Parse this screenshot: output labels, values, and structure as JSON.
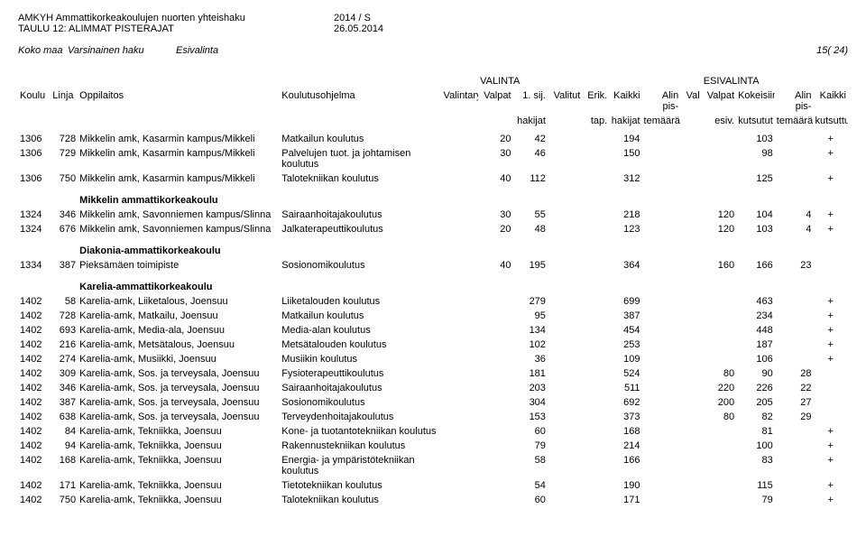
{
  "header": {
    "title1": "AMKYH Ammattikorkeakoulujen nuorten yhteishaku",
    "title1r": "2014 / S",
    "title2": "TAULU 12: ALIMMAT PISTERAJAT",
    "title2r": "26.05.2014"
  },
  "summary": {
    "a": "Koko maa",
    "b": "Varsinainen haku",
    "c": "Esivalinta",
    "page": "15( 24)"
  },
  "colheads": {
    "sec1": "VALINTA",
    "sec2": "ESIVALINTA",
    "koulu": "Koulu",
    "linja": "Linja",
    "oppi": "Oppilaitos",
    "kohj": "Koulutusohjelma",
    "vryhma": "Valintaryhmä",
    "valpat": "Valpat",
    "sij1": "1. sij.",
    "sij2": "hakijat",
    "valitut": "Valitut",
    "erik1": "Erik.",
    "erik2": "tap.",
    "kaikki1": "Kaikki",
    "kaikki2": "hakijat",
    "alin1a": "Alin pis-",
    "alin1b": "temäärä",
    "val": "Val",
    "valpat2a": "Valpat",
    "valpat2b": "esiv.",
    "kok1": "Kokeisiin",
    "kok2": "kutsutut",
    "alin2a": "Alin pis-",
    "alin2b": "temäärä",
    "kaik2a": "Kaikki",
    "kaik2b": "kutsuttu"
  },
  "rows": [
    {
      "koulu": "1306",
      "linja": "728",
      "oppi": "Mikkelin amk, Kasarmin kampus/Mikkeli",
      "kohj": "Matkailun koulutus",
      "valpat": "20",
      "sij": "42",
      "kaikki": "194",
      "kok": "103",
      "kaik2": "+"
    },
    {
      "koulu": "1306",
      "linja": "729",
      "oppi": "Mikkelin amk, Kasarmin kampus/Mikkeli",
      "kohj": "Palvelujen tuot. ja johtamisen koulutus",
      "valpat": "30",
      "sij": "46",
      "kaikki": "150",
      "kok": "98",
      "kaik2": "+"
    },
    {
      "koulu": "1306",
      "linja": "750",
      "oppi": "Mikkelin amk, Kasarmin kampus/Mikkeli",
      "kohj": "Talotekniikan koulutus",
      "valpat": "40",
      "sij": "112",
      "kaikki": "312",
      "kok": "125",
      "kaik2": "+"
    }
  ],
  "section2": {
    "title": "Mikkelin ammattikorkeakoulu",
    "rows": [
      {
        "koulu": "1324",
        "linja": "346",
        "oppi": "Mikkelin amk, Savonniemen kampus/Slinna",
        "kohj": "Sairaanhoitajakoulutus",
        "valpat": "30",
        "sij": "55",
        "kaikki": "218",
        "valpat2": "120",
        "kok": "104",
        "alin2": "4",
        "kaik2": "+"
      },
      {
        "koulu": "1324",
        "linja": "676",
        "oppi": "Mikkelin amk, Savonniemen kampus/Slinna",
        "kohj": "Jalkaterapeuttikoulutus",
        "valpat": "20",
        "sij": "48",
        "kaikki": "123",
        "valpat2": "120",
        "kok": "103",
        "alin2": "4",
        "kaik2": "+"
      }
    ]
  },
  "section3": {
    "title": "Diakonia-ammattikorkeakoulu",
    "rows": [
      {
        "koulu": "1334",
        "linja": "387",
        "oppi": "Pieksämäen toimipiste",
        "kohj": "Sosionomikoulutus",
        "valpat": "40",
        "sij": "195",
        "kaikki": "364",
        "valpat2": "160",
        "kok": "166",
        "alin2": "23"
      }
    ]
  },
  "section4": {
    "title": "Karelia-ammattikorkeakoulu",
    "rows": [
      {
        "koulu": "1402",
        "linja": "58",
        "oppi": "Karelia-amk, Liiketalous, Joensuu",
        "kohj": "Liiketalouden koulutus",
        "sij": "279",
        "kaikki": "699",
        "kok": "463",
        "kaik2": "+"
      },
      {
        "koulu": "1402",
        "linja": "728",
        "oppi": "Karelia-amk, Matkailu, Joensuu",
        "kohj": "Matkailun koulutus",
        "sij": "95",
        "kaikki": "387",
        "kok": "234",
        "kaik2": "+"
      },
      {
        "koulu": "1402",
        "linja": "693",
        "oppi": "Karelia-amk, Media-ala, Joensuu",
        "kohj": "Media-alan koulutus",
        "sij": "134",
        "kaikki": "454",
        "kok": "448",
        "kaik2": "+"
      },
      {
        "koulu": "1402",
        "linja": "216",
        "oppi": "Karelia-amk, Metsätalous, Joensuu",
        "kohj": "Metsätalouden koulutus",
        "sij": "102",
        "kaikki": "253",
        "kok": "187",
        "kaik2": "+"
      },
      {
        "koulu": "1402",
        "linja": "274",
        "oppi": "Karelia-amk, Musiikki, Joensuu",
        "kohj": "Musiikin koulutus",
        "sij": "36",
        "kaikki": "109",
        "kok": "106",
        "kaik2": "+"
      },
      {
        "koulu": "1402",
        "linja": "309",
        "oppi": "Karelia-amk, Sos. ja terveysala, Joensuu",
        "kohj": "Fysioterapeuttikoulutus",
        "sij": "181",
        "kaikki": "524",
        "valpat2": "80",
        "kok": "90",
        "alin2": "28"
      },
      {
        "koulu": "1402",
        "linja": "346",
        "oppi": "Karelia-amk, Sos. ja terveysala, Joensuu",
        "kohj": "Sairaanhoitajakoulutus",
        "sij": "203",
        "kaikki": "511",
        "valpat2": "220",
        "kok": "226",
        "alin2": "22"
      },
      {
        "koulu": "1402",
        "linja": "387",
        "oppi": "Karelia-amk, Sos. ja terveysala, Joensuu",
        "kohj": "Sosionomikoulutus",
        "sij": "304",
        "kaikki": "692",
        "valpat2": "200",
        "kok": "205",
        "alin2": "27"
      },
      {
        "koulu": "1402",
        "linja": "638",
        "oppi": "Karelia-amk, Sos. ja terveysala, Joensuu",
        "kohj": "Terveydenhoitajakoulutus",
        "sij": "153",
        "kaikki": "373",
        "valpat2": "80",
        "kok": "82",
        "alin2": "29"
      },
      {
        "koulu": "1402",
        "linja": "84",
        "oppi": "Karelia-amk, Tekniikka, Joensuu",
        "kohj": "Kone- ja tuotantotekniikan koulutus",
        "sij": "60",
        "kaikki": "168",
        "kok": "81",
        "kaik2": "+"
      },
      {
        "koulu": "1402",
        "linja": "94",
        "oppi": "Karelia-amk, Tekniikka, Joensuu",
        "kohj": "Rakennustekniikan koulutus",
        "sij": "79",
        "kaikki": "214",
        "kok": "100",
        "kaik2": "+"
      },
      {
        "koulu": "1402",
        "linja": "168",
        "oppi": "Karelia-amk, Tekniikka, Joensuu",
        "kohj": "Energia- ja ympäristötekniikan koulutus",
        "sij": "58",
        "kaikki": "166",
        "kok": "83",
        "kaik2": "+"
      },
      {
        "koulu": "1402",
        "linja": "171",
        "oppi": "Karelia-amk, Tekniikka, Joensuu",
        "kohj": "Tietotekniikan koulutus",
        "sij": "54",
        "kaikki": "190",
        "kok": "115",
        "kaik2": "+"
      },
      {
        "koulu": "1402",
        "linja": "750",
        "oppi": "Karelia-amk, Tekniikka, Joensuu",
        "kohj": "Talotekniikan koulutus",
        "sij": "60",
        "kaikki": "171",
        "kok": "79",
        "kaik2": "+"
      }
    ]
  }
}
